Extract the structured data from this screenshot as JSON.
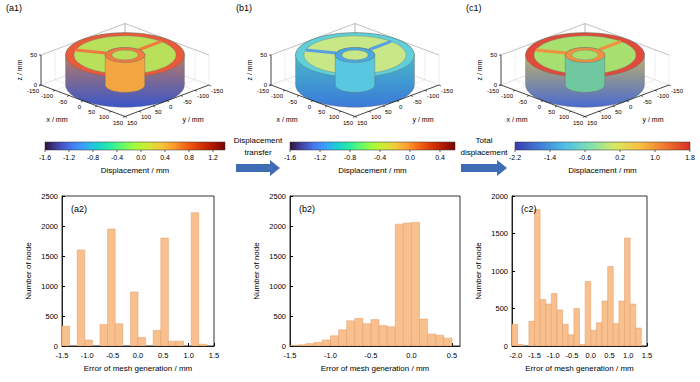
{
  "mesh_plots": [
    {
      "label": "(a1)",
      "x_label": "x / mm",
      "y_label": "y / mm",
      "z_label": "z / mm",
      "xlim": [
        -150,
        150
      ],
      "ylim": [
        -150,
        150
      ],
      "zlim": [
        0,
        50
      ],
      "xticks": [
        -150,
        -100,
        -50,
        0,
        50,
        100,
        150
      ],
      "yticks": [
        -150,
        -100,
        -50,
        0,
        50,
        100,
        150
      ],
      "zticks": [
        0,
        50
      ],
      "colorbar": {
        "label": "Displacement / mm",
        "range": [
          -1.6,
          1.4
        ],
        "ticks": [
          -1.6,
          -1.2,
          -0.8,
          -0.4,
          {
            "value": 0,
            "label": "0.0"
          },
          0.4,
          0.8,
          1.2
        ]
      }
    },
    {
      "label": "(b1)",
      "x_label": "x / mm",
      "y_label": "y / mm",
      "z_label": "z / mm",
      "xlim": [
        -150,
        150
      ],
      "ylim": [
        -150,
        150
      ],
      "zlim": [
        0,
        50
      ],
      "xticks": [
        -150,
        -100,
        -50,
        0,
        50,
        100,
        150
      ],
      "yticks": [
        -150,
        -100,
        -50,
        0,
        50,
        100,
        150
      ],
      "zticks": [
        0,
        50
      ],
      "colorbar": {
        "label": "Displacement / mm",
        "range": [
          -1.6,
          0.6
        ],
        "ticks": [
          -1.6,
          -1.2,
          -0.8,
          -0.4,
          {
            "value": 0,
            "label": "0.0"
          },
          0.4
        ]
      }
    },
    {
      "label": "(c1)",
      "x_label": "x / mm",
      "y_label": "y / mm",
      "z_label": "z / mm",
      "xlim": [
        -150,
        150
      ],
      "ylim": [
        -150,
        150
      ],
      "zlim": [
        0,
        50
      ],
      "xticks": [
        -150,
        -100,
        -50,
        0,
        50,
        100,
        150
      ],
      "yticks": [
        -150,
        -100,
        -50,
        0,
        50,
        100,
        150
      ],
      "zticks": [
        0,
        50
      ],
      "colorbar": {
        "label": "Displacement / mm",
        "range": [
          -2.2,
          1.8
        ],
        "ticks": [
          -2.2,
          -1.4,
          -0.6,
          0.2,
          {
            "value": 1,
            "label": "1.0"
          },
          1.8
        ]
      }
    }
  ],
  "arrows": [
    "Displacement transfer",
    "Total displacement"
  ],
  "chart_data": [
    {
      "type": "histogram",
      "title": "(a2)",
      "x_label": "Error of mesh generation / mm",
      "y_label": "Number of node",
      "bins": [
        -1.5,
        -1.35,
        -1.2,
        -1.05,
        -0.9,
        -0.75,
        -0.6,
        -0.45,
        -0.3,
        -0.15,
        0,
        0.15,
        0.3,
        0.45,
        0.6,
        0.75,
        0.9,
        1.05,
        1.2,
        1.35,
        1.5
      ],
      "values": [
        330,
        0,
        1600,
        100,
        0,
        360,
        1950,
        370,
        0,
        900,
        140,
        0,
        260,
        1800,
        80,
        80,
        0,
        2220,
        30,
        0
      ],
      "color": "#f9c08f",
      "xlim": [
        -1.5,
        1.5
      ],
      "xticks": [
        -1.5,
        {
          "value": -1,
          "label": "-1.0"
        },
        -0.5,
        {
          "value": 0,
          "label": "0.0"
        },
        0.5,
        {
          "value": 1,
          "label": "1.0"
        },
        1.5
      ],
      "ylim": [
        0,
        2500
      ],
      "yticks": [
        0,
        500,
        1000,
        1500,
        2000,
        2500
      ]
    },
    {
      "type": "histogram",
      "title": "(b2)",
      "x_label": "Error of mesh generation / mm",
      "y_label": "Number of node",
      "bins": [
        -1.5,
        -1.4,
        -1.3,
        -1.2,
        -1.1,
        -1,
        -0.9,
        -0.8,
        -0.7,
        -0.6,
        -0.5,
        -0.4,
        -0.3,
        -0.2,
        -0.1,
        0,
        0.1,
        0.2,
        0.3,
        0.4,
        0.5,
        0.6
      ],
      "values": [
        10,
        20,
        40,
        60,
        100,
        170,
        270,
        420,
        460,
        370,
        440,
        340,
        320,
        2030,
        2050,
        2060,
        450,
        200,
        180,
        130,
        0
      ],
      "color": "#f9c08f",
      "xlim": [
        -1.5,
        0.6
      ],
      "xticks": [
        -1.5,
        {
          "value": -1,
          "label": "-1.0"
        },
        -0.5,
        {
          "value": 0,
          "label": "0.0"
        },
        0.5
      ],
      "ylim": [
        0,
        2500
      ],
      "yticks": [
        0,
        500,
        1000,
        1500,
        2000,
        2500
      ]
    },
    {
      "type": "histogram",
      "title": "(c2)",
      "x_label": "Error of mesh generation / mm",
      "y_label": "Number of node",
      "bins": [
        -2.1,
        -1.95,
        -1.8,
        -1.65,
        -1.5,
        -1.35,
        -1.2,
        -1.05,
        -0.9,
        -0.75,
        -0.6,
        -0.45,
        -0.3,
        -0.15,
        0,
        0.15,
        0.3,
        0.45,
        0.6,
        0.75,
        0.9,
        1.05,
        1.2,
        1.35,
        1.5
      ],
      "values": [
        290,
        20,
        0,
        330,
        1820,
        620,
        560,
        700,
        480,
        290,
        150,
        500,
        20,
        860,
        210,
        310,
        600,
        1060,
        300,
        600,
        1440,
        560,
        240,
        0
      ],
      "color": "#f9c08f",
      "xlim": [
        -2.1,
        1.5
      ],
      "xticks": [
        {
          "value": -2,
          "label": "-2.0"
        },
        -1.5,
        {
          "value": -1,
          "label": "-1.0"
        },
        -0.5,
        {
          "value": 0,
          "label": "0.0"
        },
        0.5,
        {
          "value": 1,
          "label": "1.0"
        },
        1.5
      ],
      "ylim": [
        0,
        2000
      ],
      "yticks": [
        0,
        500,
        1000,
        1500,
        2000
      ]
    }
  ]
}
